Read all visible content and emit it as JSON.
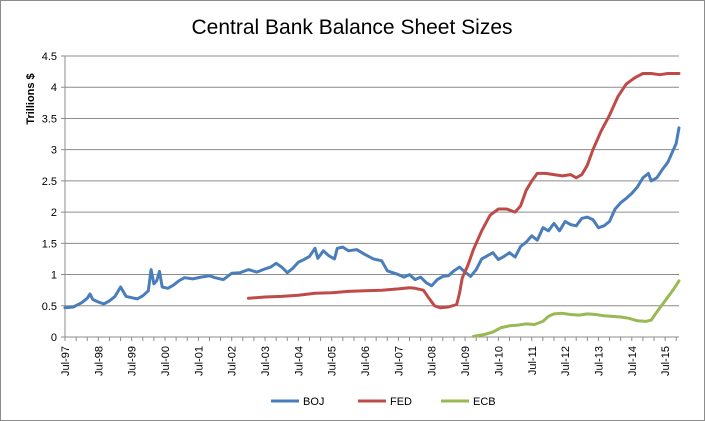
{
  "chart_data": {
    "type": "line",
    "title": "Central Bank Balance Sheet Sizes",
    "xlabel": "",
    "ylabel": "Trillions $",
    "ylim": [
      0,
      4.5
    ],
    "yticks": [
      0,
      0.5,
      1,
      1.5,
      2,
      2.5,
      3,
      3.5,
      4,
      4.5
    ],
    "ytick_labels": [
      "0",
      "0.5",
      "1",
      "1.5",
      "2",
      "2.5",
      "3",
      "3.5",
      "4",
      "4.5"
    ],
    "x_range": [
      "1997-07",
      "2015-12"
    ],
    "x_tick_labels": [
      "Jul-97",
      "Jul-98",
      "Jul-99",
      "Jul-00",
      "Jul-01",
      "Jul-02",
      "Jul-03",
      "Jul-04",
      "Jul-05",
      "Jul-06",
      "Jul-07",
      "Jul-08",
      "Jul-09",
      "Jul-10",
      "Jul-11",
      "Jul-12",
      "Jul-13",
      "Jul-14",
      "Jul-15"
    ],
    "grid": "horizontal",
    "legend_position": "bottom",
    "series": [
      {
        "name": "BOJ",
        "color": "#4a7ebb",
        "points": [
          [
            "1997-07",
            0.47
          ],
          [
            "1997-10",
            0.48
          ],
          [
            "1998-01",
            0.55
          ],
          [
            "1998-03",
            0.62
          ],
          [
            "1998-04",
            0.69
          ],
          [
            "1998-05",
            0.6
          ],
          [
            "1998-07",
            0.56
          ],
          [
            "1998-09",
            0.53
          ],
          [
            "1998-11",
            0.58
          ],
          [
            "1999-01",
            0.65
          ],
          [
            "1999-03",
            0.8
          ],
          [
            "1999-05",
            0.65
          ],
          [
            "1999-07",
            0.63
          ],
          [
            "1999-09",
            0.61
          ],
          [
            "1999-11",
            0.66
          ],
          [
            "2000-01",
            0.74
          ],
          [
            "2000-02",
            1.08
          ],
          [
            "2000-03",
            0.85
          ],
          [
            "2000-04",
            0.9
          ],
          [
            "2000-05",
            1.05
          ],
          [
            "2000-06",
            0.8
          ],
          [
            "2000-08",
            0.78
          ],
          [
            "2000-10",
            0.83
          ],
          [
            "2000-12",
            0.9
          ],
          [
            "2001-02",
            0.95
          ],
          [
            "2001-05",
            0.93
          ],
          [
            "2001-08",
            0.96
          ],
          [
            "2001-11",
            0.98
          ],
          [
            "2002-01",
            0.95
          ],
          [
            "2002-04",
            0.92
          ],
          [
            "2002-07",
            1.02
          ],
          [
            "2002-10",
            1.03
          ],
          [
            "2003-01",
            1.08
          ],
          [
            "2003-04",
            1.04
          ],
          [
            "2003-07",
            1.09
          ],
          [
            "2003-09",
            1.12
          ],
          [
            "2003-11",
            1.18
          ],
          [
            "2004-01",
            1.12
          ],
          [
            "2004-03",
            1.03
          ],
          [
            "2004-05",
            1.1
          ],
          [
            "2004-07",
            1.2
          ],
          [
            "2004-09",
            1.24
          ],
          [
            "2004-11",
            1.29
          ],
          [
            "2005-01",
            1.42
          ],
          [
            "2005-02",
            1.26
          ],
          [
            "2005-04",
            1.38
          ],
          [
            "2005-06",
            1.3
          ],
          [
            "2005-08",
            1.25
          ],
          [
            "2005-09",
            1.42
          ],
          [
            "2005-11",
            1.44
          ],
          [
            "2006-01",
            1.38
          ],
          [
            "2006-04",
            1.4
          ],
          [
            "2006-07",
            1.32
          ],
          [
            "2006-10",
            1.25
          ],
          [
            "2007-01",
            1.22
          ],
          [
            "2007-03",
            1.06
          ],
          [
            "2007-05",
            1.03
          ],
          [
            "2007-07",
            1.0
          ],
          [
            "2007-09",
            0.96
          ],
          [
            "2007-11",
            1.0
          ],
          [
            "2008-01",
            0.92
          ],
          [
            "2008-03",
            0.96
          ],
          [
            "2008-05",
            0.87
          ],
          [
            "2008-07",
            0.82
          ],
          [
            "2008-09",
            0.92
          ],
          [
            "2008-11",
            0.97
          ],
          [
            "2009-01",
            0.98
          ],
          [
            "2009-03",
            1.06
          ],
          [
            "2009-05",
            1.12
          ],
          [
            "2009-07",
            1.04
          ],
          [
            "2009-09",
            0.97
          ],
          [
            "2009-11",
            1.08
          ],
          [
            "2010-01",
            1.25
          ],
          [
            "2010-03",
            1.3
          ],
          [
            "2010-05",
            1.35
          ],
          [
            "2010-07",
            1.24
          ],
          [
            "2010-09",
            1.29
          ],
          [
            "2010-11",
            1.35
          ],
          [
            "2011-01",
            1.28
          ],
          [
            "2011-03",
            1.45
          ],
          [
            "2011-05",
            1.52
          ],
          [
            "2011-07",
            1.62
          ],
          [
            "2011-09",
            1.55
          ],
          [
            "2011-11",
            1.75
          ],
          [
            "2012-01",
            1.7
          ],
          [
            "2012-03",
            1.82
          ],
          [
            "2012-05",
            1.7
          ],
          [
            "2012-07",
            1.85
          ],
          [
            "2012-09",
            1.8
          ],
          [
            "2012-11",
            1.78
          ],
          [
            "2013-01",
            1.9
          ],
          [
            "2013-03",
            1.92
          ],
          [
            "2013-05",
            1.88
          ],
          [
            "2013-07",
            1.75
          ],
          [
            "2013-09",
            1.78
          ],
          [
            "2013-11",
            1.85
          ],
          [
            "2014-01",
            2.05
          ],
          [
            "2014-03",
            2.15
          ],
          [
            "2014-05",
            2.22
          ],
          [
            "2014-07",
            2.3
          ],
          [
            "2014-09",
            2.4
          ],
          [
            "2014-11",
            2.55
          ],
          [
            "2015-01",
            2.62
          ],
          [
            "2015-02",
            2.5
          ],
          [
            "2015-04",
            2.55
          ],
          [
            "2015-06",
            2.68
          ],
          [
            "2015-08",
            2.8
          ],
          [
            "2015-10",
            3.0
          ],
          [
            "2015-11",
            3.1
          ],
          [
            "2015-12",
            3.35
          ]
        ]
      },
      {
        "name": "FED",
        "color": "#be4b48",
        "points": [
          [
            "2003-01",
            0.62
          ],
          [
            "2003-07",
            0.64
          ],
          [
            "2004-01",
            0.65
          ],
          [
            "2004-07",
            0.67
          ],
          [
            "2005-01",
            0.7
          ],
          [
            "2005-07",
            0.71
          ],
          [
            "2006-01",
            0.73
          ],
          [
            "2006-07",
            0.74
          ],
          [
            "2007-01",
            0.75
          ],
          [
            "2007-07",
            0.77
          ],
          [
            "2007-11",
            0.79
          ],
          [
            "2008-01",
            0.78
          ],
          [
            "2008-04",
            0.75
          ],
          [
            "2008-06",
            0.62
          ],
          [
            "2008-08",
            0.5
          ],
          [
            "2008-10",
            0.47
          ],
          [
            "2009-01",
            0.48
          ],
          [
            "2009-04",
            0.52
          ],
          [
            "2009-05",
            0.7
          ],
          [
            "2009-06",
            0.95
          ],
          [
            "2009-08",
            1.15
          ],
          [
            "2009-10",
            1.4
          ],
          [
            "2010-01",
            1.7
          ],
          [
            "2010-04",
            1.95
          ],
          [
            "2010-07",
            2.05
          ],
          [
            "2010-10",
            2.05
          ],
          [
            "2011-01",
            2.0
          ],
          [
            "2011-03",
            2.1
          ],
          [
            "2011-05",
            2.35
          ],
          [
            "2011-07",
            2.5
          ],
          [
            "2011-09",
            2.62
          ],
          [
            "2011-12",
            2.62
          ],
          [
            "2012-03",
            2.6
          ],
          [
            "2012-06",
            2.58
          ],
          [
            "2012-09",
            2.6
          ],
          [
            "2012-11",
            2.55
          ],
          [
            "2013-01",
            2.6
          ],
          [
            "2013-03",
            2.75
          ],
          [
            "2013-05",
            3.0
          ],
          [
            "2013-08",
            3.3
          ],
          [
            "2013-11",
            3.55
          ],
          [
            "2014-02",
            3.85
          ],
          [
            "2014-05",
            4.05
          ],
          [
            "2014-08",
            4.15
          ],
          [
            "2014-11",
            4.22
          ],
          [
            "2015-02",
            4.22
          ],
          [
            "2015-05",
            4.2
          ],
          [
            "2015-08",
            4.22
          ],
          [
            "2015-12",
            4.22
          ]
        ]
      },
      {
        "name": "ECB",
        "color": "#98b954",
        "points": [
          [
            "2009-10",
            0.01
          ],
          [
            "2010-02",
            0.04
          ],
          [
            "2010-05",
            0.08
          ],
          [
            "2010-08",
            0.15
          ],
          [
            "2010-11",
            0.18
          ],
          [
            "2011-02",
            0.19
          ],
          [
            "2011-05",
            0.21
          ],
          [
            "2011-08",
            0.2
          ],
          [
            "2011-11",
            0.25
          ],
          [
            "2012-01",
            0.33
          ],
          [
            "2012-03",
            0.37
          ],
          [
            "2012-06",
            0.38
          ],
          [
            "2012-09",
            0.36
          ],
          [
            "2012-12",
            0.35
          ],
          [
            "2013-03",
            0.37
          ],
          [
            "2013-06",
            0.36
          ],
          [
            "2013-09",
            0.34
          ],
          [
            "2013-12",
            0.33
          ],
          [
            "2014-03",
            0.32
          ],
          [
            "2014-06",
            0.3
          ],
          [
            "2014-09",
            0.26
          ],
          [
            "2014-12",
            0.25
          ],
          [
            "2015-02",
            0.27
          ],
          [
            "2015-04",
            0.4
          ],
          [
            "2015-07",
            0.58
          ],
          [
            "2015-10",
            0.76
          ],
          [
            "2015-12",
            0.9
          ]
        ]
      }
    ]
  }
}
